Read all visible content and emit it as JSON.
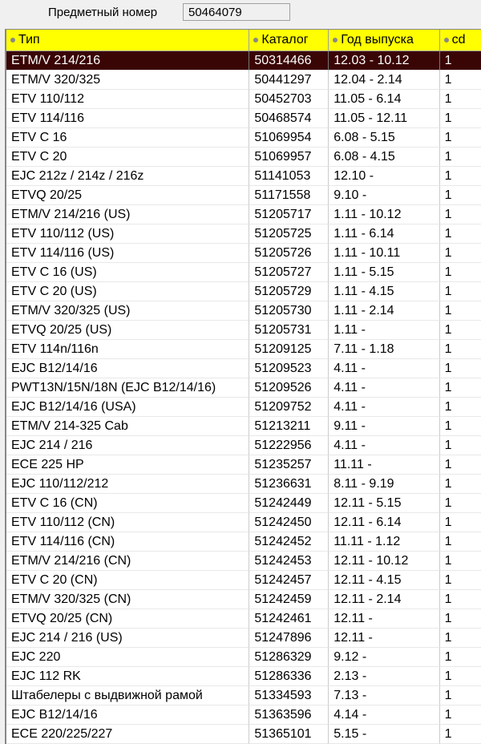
{
  "item_number": {
    "label": "Предметный номер",
    "value": "50464079"
  },
  "colors": {
    "header": "#ffff00",
    "selected": "#3a0505"
  },
  "columns": [
    "Тип",
    "Каталог",
    "Год выпуска",
    "cd"
  ],
  "selected_row": 0,
  "rows": [
    [
      "ETM/V 214/216",
      "50314466",
      "12.03 - 10.12",
      "1"
    ],
    [
      "ETM/V 320/325",
      "50441297",
      "12.04 - 2.14",
      "1"
    ],
    [
      "ETV 110/112",
      "50452703",
      "11.05 - 6.14",
      "1"
    ],
    [
      "ETV 114/116",
      "50468574",
      "11.05 - 12.11",
      "1"
    ],
    [
      "ETV C 16",
      "51069954",
      "6.08 - 5.15",
      "1"
    ],
    [
      "ETV C 20",
      "51069957",
      "6.08 - 4.15",
      "1"
    ],
    [
      "EJC 212z / 214z / 216z",
      "51141053",
      "12.10 -",
      "1"
    ],
    [
      "ETVQ 20/25",
      "51171558",
      "9.10 -",
      "1"
    ],
    [
      "ETM/V 214/216 (US)",
      "51205717",
      "1.11 - 10.12",
      "1"
    ],
    [
      "ETV 110/112 (US)",
      "51205725",
      "1.11 - 6.14",
      "1"
    ],
    [
      "ETV 114/116 (US)",
      "51205726",
      "1.11 - 10.11",
      "1"
    ],
    [
      "ETV C 16 (US)",
      "51205727",
      "1.11 - 5.15",
      "1"
    ],
    [
      "ETV C 20 (US)",
      "51205729",
      "1.11 - 4.15",
      "1"
    ],
    [
      "ETM/V 320/325 (US)",
      "51205730",
      "1.11 - 2.14",
      "1"
    ],
    [
      "ETVQ 20/25 (US)",
      "51205731",
      "1.11 -",
      "1"
    ],
    [
      "ETV 114n/116n",
      "51209125",
      "7.11 - 1.18",
      "1"
    ],
    [
      "EJC B12/14/16",
      "51209523",
      "4.11 -",
      "1"
    ],
    [
      "PWT13N/15N/18N (EJC B12/14/16)",
      "51209526",
      "4.11 -",
      "1"
    ],
    [
      "EJC B12/14/16 (USA)",
      "51209752",
      "4.11 -",
      "1"
    ],
    [
      "ETM/V 214-325 Cab",
      "51213211",
      "9.11 -",
      "1"
    ],
    [
      "EJC 214 / 216",
      "51222956",
      "4.11 -",
      "1"
    ],
    [
      "ECE 225 HP",
      "51235257",
      "11.11 -",
      "1"
    ],
    [
      "EJC 110/112/212",
      "51236631",
      "8.11 - 9.19",
      "1"
    ],
    [
      "ETV C 16 (CN)",
      "51242449",
      "12.11 - 5.15",
      "1"
    ],
    [
      "ETV 110/112 (CN)",
      "51242450",
      "12.11 - 6.14",
      "1"
    ],
    [
      "ETV 114/116 (CN)",
      "51242452",
      "11.11 - 1.12",
      "1"
    ],
    [
      "ETM/V 214/216 (CN)",
      "51242453",
      "12.11 - 10.12",
      "1"
    ],
    [
      "ETV C 20 (CN)",
      "51242457",
      "12.11 - 4.15",
      "1"
    ],
    [
      "ETM/V 320/325 (CN)",
      "51242459",
      "12.11 - 2.14",
      "1"
    ],
    [
      "ETVQ 20/25 (CN)",
      "51242461",
      "12.11 -",
      "1"
    ],
    [
      "EJC 214 / 216 (US)",
      "51247896",
      "12.11 -",
      "1"
    ],
    [
      "EJC 220",
      "51286329",
      "9.12 -",
      "1"
    ],
    [
      "EJC 112 RK",
      "51286336",
      "2.13 -",
      "1"
    ],
    [
      "Штабелеры с выдвижной рамой",
      "51334593",
      "7.13 -",
      "1"
    ],
    [
      "EJC B12/14/16",
      "51363596",
      "4.14 -",
      "1"
    ],
    [
      "ECE 220/225/227",
      "51365101",
      "5.15 -",
      "1"
    ]
  ]
}
